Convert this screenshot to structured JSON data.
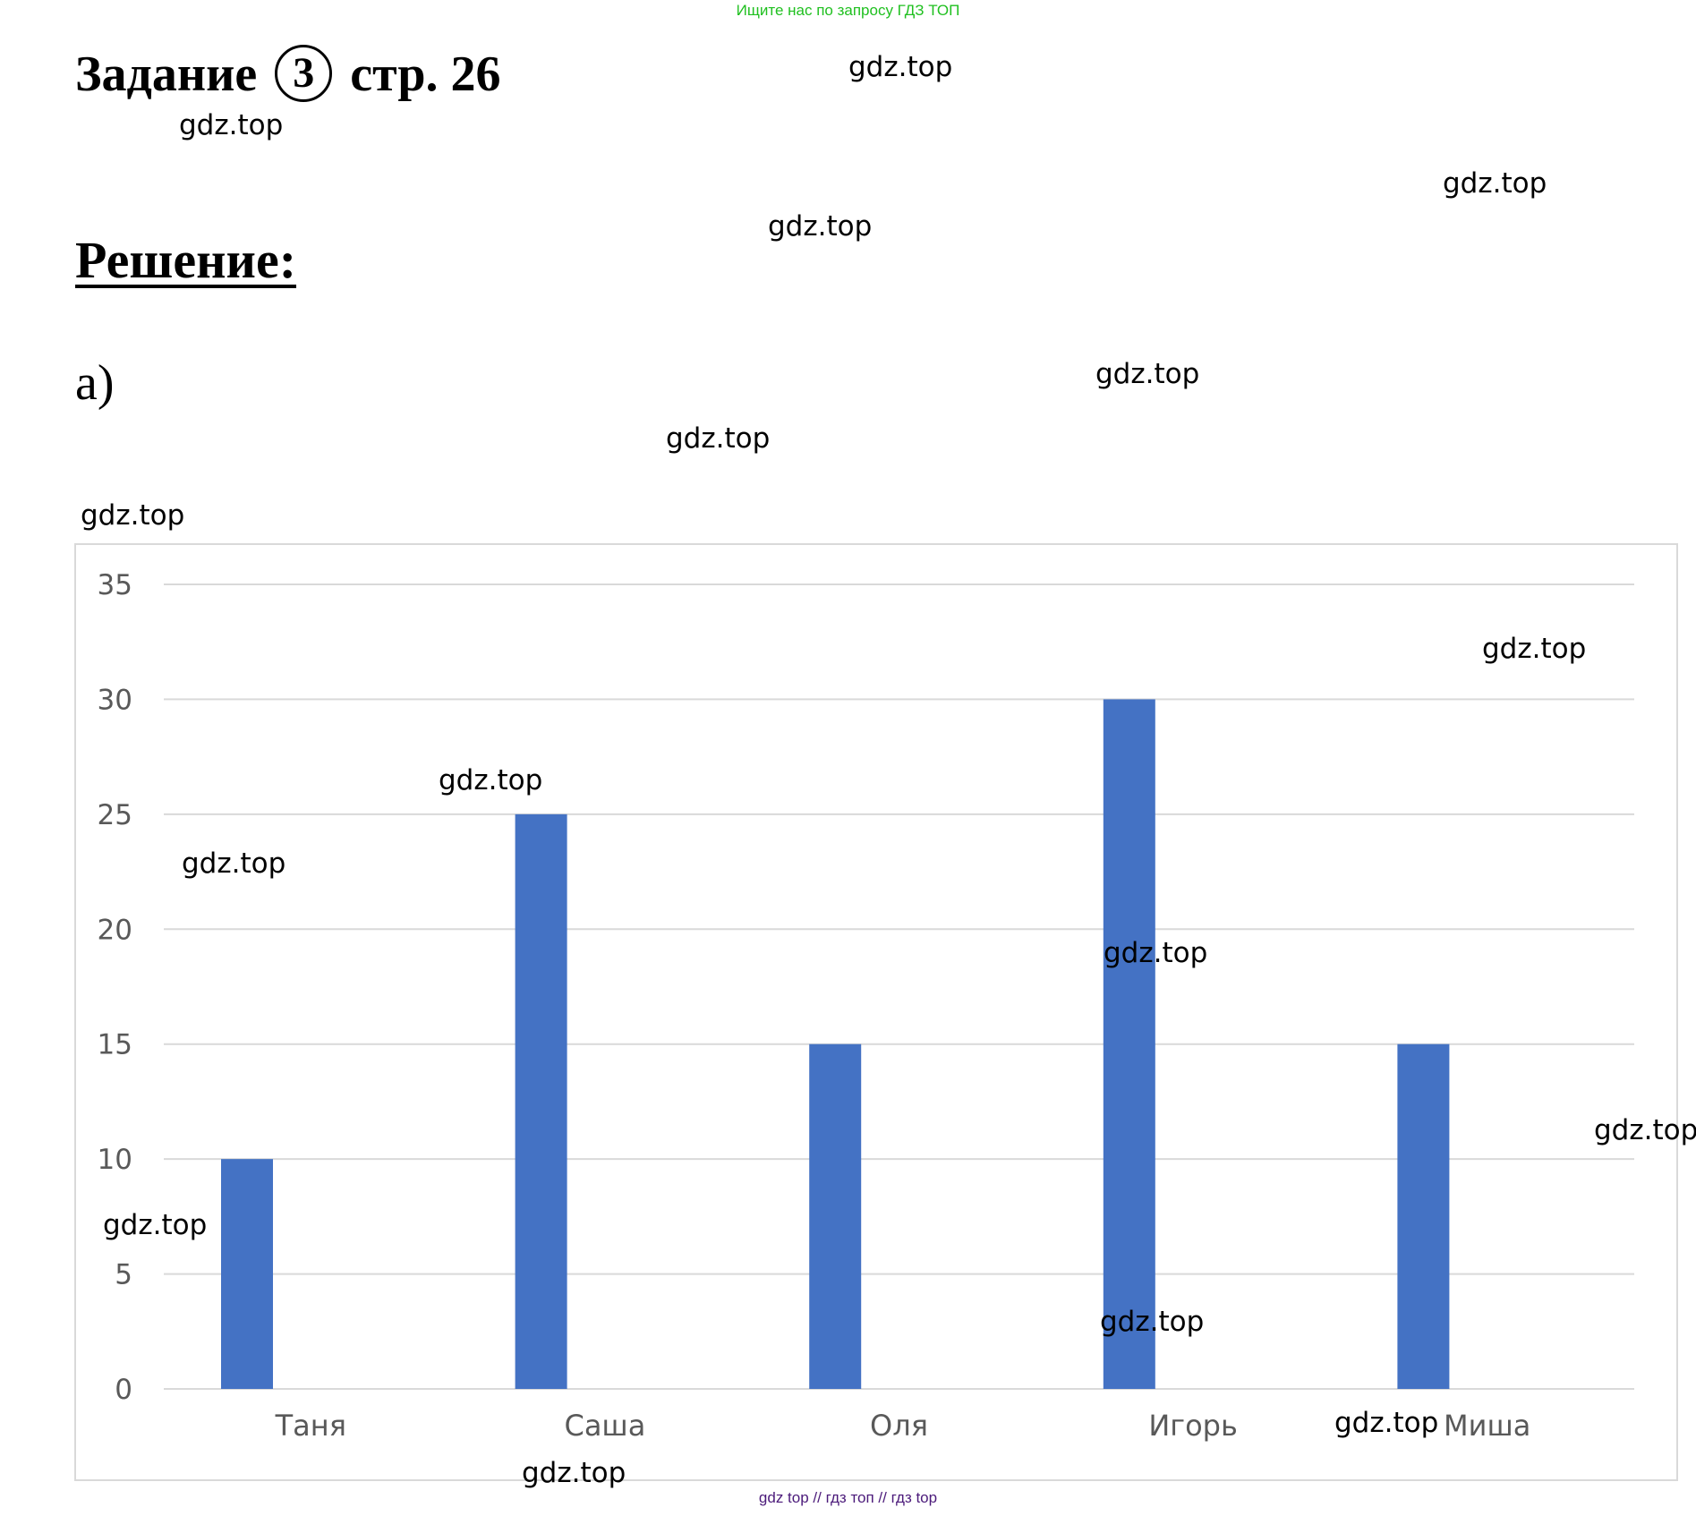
{
  "top_banner": "Ищите нас по запросу ГДЗ ТОП",
  "task": {
    "prefix": "Задание",
    "number": "3",
    "suffix": "стр. 26"
  },
  "solution_label": "Решение:",
  "part_label": "а)",
  "watermark_text": "gdz.top",
  "bottom_banner": "gdz top  //  гдз топ  //  гдз top",
  "chart_data": {
    "type": "bar",
    "categories": [
      "Таня",
      "Саша",
      "Оля",
      "Игорь",
      "Миша"
    ],
    "values": [
      10,
      25,
      15,
      30,
      15
    ],
    "ylim": [
      0,
      35
    ],
    "yticks": [
      0,
      5,
      10,
      15,
      20,
      25,
      30,
      35
    ],
    "grid": true,
    "bar_color": "#4472c4",
    "grid_color": "#d9d9d9",
    "tick_label_color": "#595959"
  }
}
